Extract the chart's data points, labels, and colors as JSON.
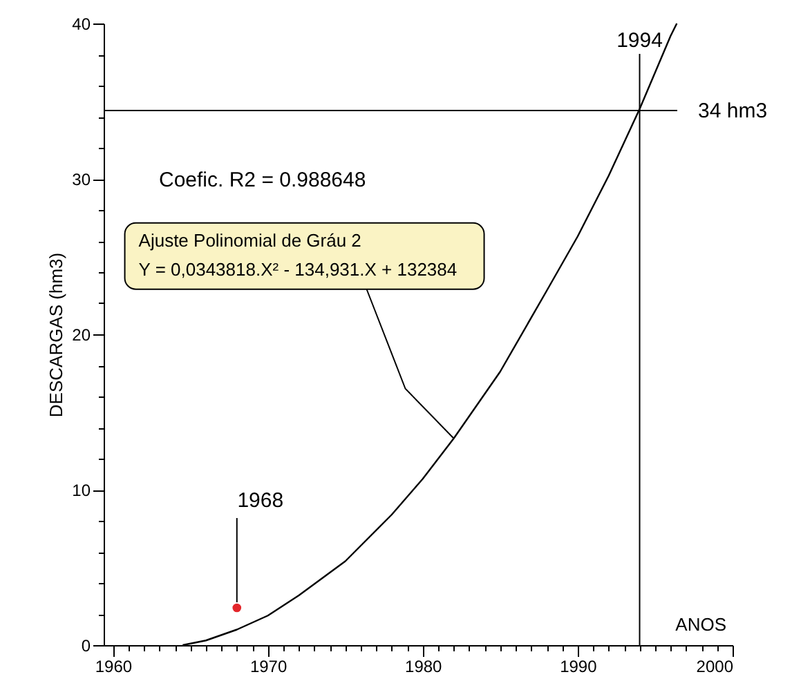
{
  "chart_data": {
    "type": "line",
    "xlabel": "ANOS",
    "ylabel": "DESCARGAS (hm3)",
    "xlim": [
      1959.4,
      2000
    ],
    "ylim": [
      0,
      40
    ],
    "xticks": [
      1960,
      {
        "value": 1961,
        "label": null
      },
      {
        "value": 1962,
        "label": null
      },
      {
        "value": 1963,
        "label": null
      },
      {
        "value": 1964,
        "label": null
      },
      {
        "value": 1965,
        "label": null
      },
      {
        "value": 1966,
        "label": null
      },
      {
        "value": 1967,
        "label": null
      },
      {
        "value": 1968,
        "label": null
      },
      {
        "value": 1969,
        "label": null
      },
      1970,
      {
        "value": 1971,
        "label": null
      },
      {
        "value": 1972,
        "label": null
      },
      {
        "value": 1973,
        "label": null
      },
      {
        "value": 1974,
        "label": null
      },
      {
        "value": 1975,
        "label": null
      },
      {
        "value": 1976,
        "label": null
      },
      {
        "value": 1977,
        "label": null
      },
      {
        "value": 1978,
        "label": null
      },
      {
        "value": 1979,
        "label": null
      },
      1980,
      {
        "value": 1981,
        "label": null
      },
      {
        "value": 1982,
        "label": null
      },
      {
        "value": 1983,
        "label": null
      },
      {
        "value": 1984,
        "label": null
      },
      {
        "value": 1985,
        "label": null
      },
      {
        "value": 1986,
        "label": null
      },
      {
        "value": 1987,
        "label": null
      },
      {
        "value": 1988,
        "label": null
      },
      {
        "value": 1989,
        "label": null
      },
      1990,
      {
        "value": 1991,
        "label": null
      },
      {
        "value": 1992,
        "label": null
      },
      {
        "value": 1993,
        "label": null
      },
      {
        "value": 1994,
        "label": null
      },
      {
        "value": 1995,
        "label": null
      },
      {
        "value": 1996,
        "label": null
      },
      {
        "value": 1997,
        "label": null
      },
      {
        "value": 1998,
        "label": null
      },
      {
        "value": 1999,
        "label": null
      },
      2000
    ],
    "yticks": [
      0,
      {
        "value": 2,
        "label": null
      },
      {
        "value": 4,
        "label": null
      },
      {
        "value": 6,
        "label": null
      },
      {
        "value": 8,
        "label": null
      },
      10,
      {
        "value": 12,
        "label": null
      },
      {
        "value": 14,
        "label": null
      },
      {
        "value": 16,
        "label": null
      },
      {
        "value": 18,
        "label": null
      },
      20,
      {
        "value": 22,
        "label": null
      },
      {
        "value": 24,
        "label": null
      },
      {
        "value": 26,
        "label": null
      },
      {
        "value": 28,
        "label": null
      },
      30,
      {
        "value": 32,
        "label": null
      },
      {
        "value": 34,
        "label": null
      },
      {
        "value": 36,
        "label": null
      },
      {
        "value": 38,
        "label": null
      },
      40
    ],
    "grid": false,
    "series": [
      {
        "color": "#000000",
        "x": [
          1964.5,
          1965,
          1966,
          1968,
          1970,
          1972,
          1975,
          1978,
          1980,
          1982,
          1985,
          1988,
          1990,
          1992,
          1994,
          1996,
          1996.4
        ],
        "values": [
          0,
          0.1,
          0.3,
          1.0,
          1.9,
          3.2,
          5.4,
          8.4,
          10.7,
          13.3,
          17.6,
          22.8,
          26.3,
          30.2,
          34.5,
          39.2,
          40
        ]
      },
      {
        "type": "scatter",
        "color": "#e3262b",
        "x": [
          1968
        ],
        "values": [
          2.4
        ]
      }
    ],
    "ref_lines": [
      {
        "axis": "y",
        "value": 34.4,
        "label": "34 hm3"
      },
      {
        "axis": "x",
        "value": 1994,
        "label": "1994"
      }
    ],
    "annotations": [
      "Coefic. R2 = 0.988648",
      {
        "text": "1968",
        "x": 1968,
        "y": 2.4
      },
      {
        "text": "Ajuste Polinomial de Gráu 2\nY = 0,0343818.X² - 134,931.X + 132384",
        "x": 1982,
        "y": 13.3
      }
    ]
  }
}
